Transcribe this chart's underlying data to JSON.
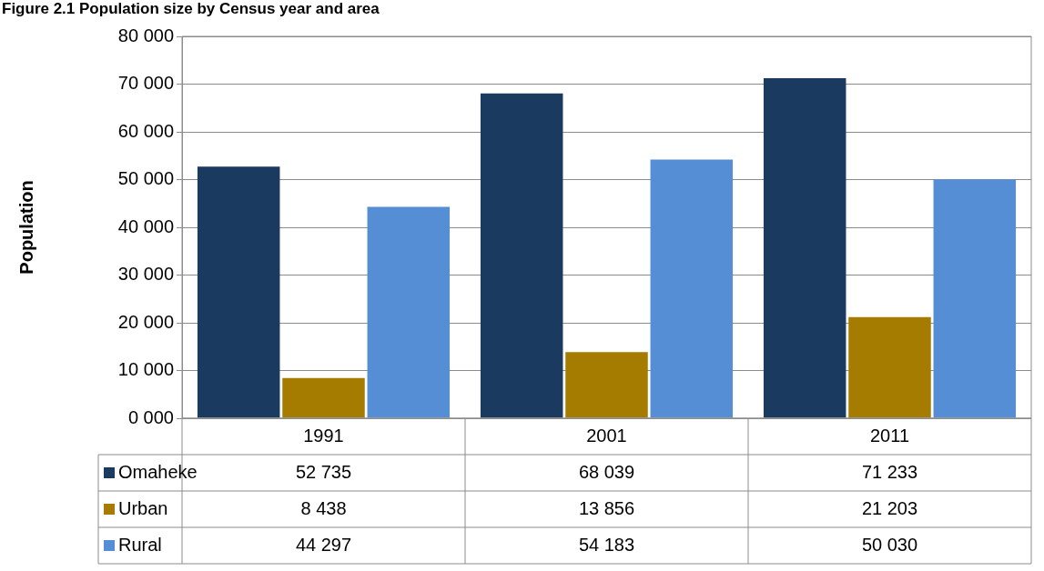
{
  "chart_data": {
    "type": "bar",
    "title": "Figure 2.1 Population size by Census year and area",
    "ylabel": "Population",
    "categories": [
      "1991",
      "2001",
      "2011"
    ],
    "series": [
      {
        "name": "Omaheke",
        "color": "#1b3a5f",
        "values": [
          52735,
          68039,
          71233
        ],
        "value_labels": [
          "52 735",
          "68 039",
          "71 233"
        ]
      },
      {
        "name": "Urban",
        "color": "#a67c00",
        "values": [
          8438,
          13856,
          21203
        ],
        "value_labels": [
          "8 438",
          "13 856",
          "21 203"
        ]
      },
      {
        "name": "Rural",
        "color": "#558ed5",
        "values": [
          44297,
          54183,
          50030
        ],
        "value_labels": [
          "44 297",
          "54 183",
          "50 030"
        ]
      }
    ],
    "ylim": [
      0,
      80000
    ],
    "yticks": [
      {
        "value": 0,
        "label": "0 000"
      },
      {
        "value": 10000,
        "label": "10 000"
      },
      {
        "value": 20000,
        "label": "20 000"
      },
      {
        "value": 30000,
        "label": "30 000"
      },
      {
        "value": 40000,
        "label": "40 000"
      },
      {
        "value": 50000,
        "label": "50 000"
      },
      {
        "value": 60000,
        "label": "60 000"
      },
      {
        "value": 70000,
        "label": "70 000"
      },
      {
        "value": 80000,
        "label": "80 000"
      }
    ],
    "grid": "y",
    "legend": "bottom"
  }
}
